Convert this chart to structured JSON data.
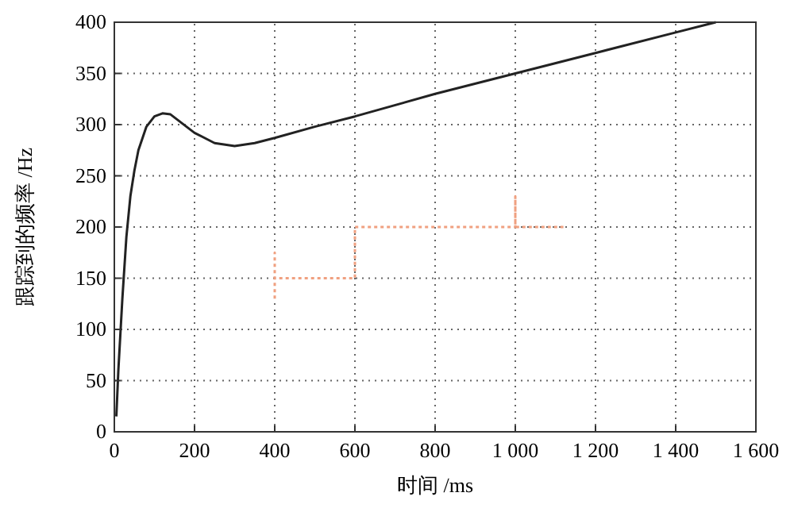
{
  "chart_data": {
    "type": "line",
    "xlabel": "时间  /ms",
    "ylabel": "跟踪到的频率  /Hz",
    "xlim": [
      0,
      1600
    ],
    "ylim": [
      0,
      400
    ],
    "xticks": [
      0,
      200,
      400,
      600,
      800,
      {
        "value": 1000,
        "label": "1 000"
      },
      {
        "value": 1200,
        "label": "1 200"
      },
      {
        "value": 1400,
        "label": "1 400"
      },
      {
        "value": 1600,
        "label": "1 600"
      }
    ],
    "yticks": [
      0,
      50,
      100,
      150,
      200,
      250,
      300,
      350,
      400
    ],
    "grid": true,
    "series": [
      {
        "color": "#222222",
        "line_style": "solid",
        "x": [
          5,
          10,
          20,
          30,
          40,
          50,
          60,
          80,
          100,
          120,
          140,
          160,
          200,
          250,
          300,
          350,
          400,
          500,
          600,
          800,
          1000,
          1200,
          1400,
          1500
        ],
        "values": [
          15,
          60,
          130,
          190,
          230,
          255,
          275,
          298,
          308,
          311,
          310,
          304,
          292,
          282,
          279,
          282,
          287,
          298,
          308,
          330,
          350,
          370,
          390,
          400
        ]
      },
      {
        "color": "#f0a080",
        "line_style": "dotted",
        "x": [
          400,
          400,
          400,
          600,
          600,
          1000,
          1000,
          1000,
          1120
        ],
        "values": [
          130,
          175,
          150,
          150,
          200,
          200,
          230,
          200,
          200
        ]
      }
    ]
  }
}
